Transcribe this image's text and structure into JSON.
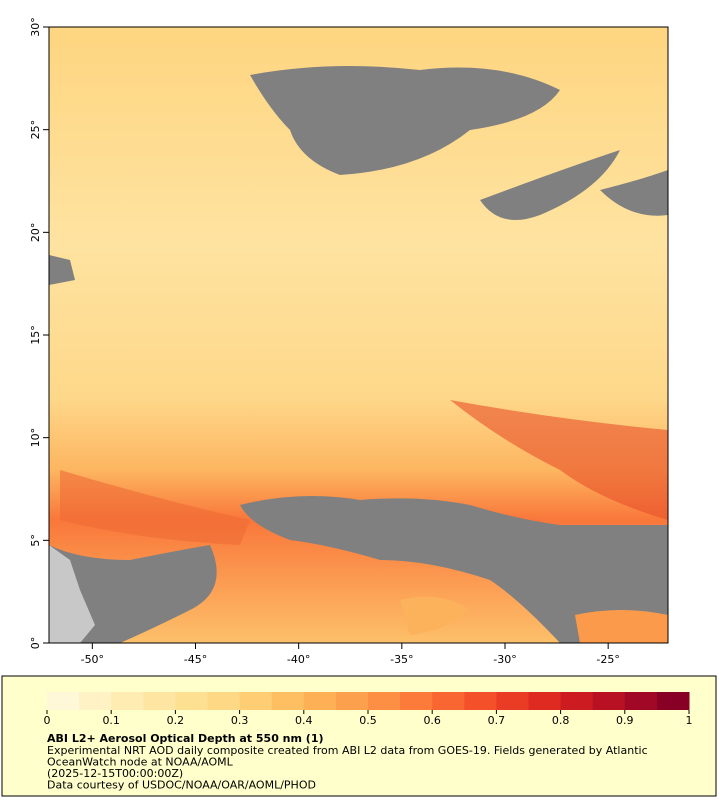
{
  "map": {
    "xlim": [
      -52.1,
      -22.1
    ],
    "ylim": [
      0,
      30
    ],
    "xticks": [
      {
        "value": -50,
        "label": "-50°"
      },
      {
        "value": -45,
        "label": "-45°"
      },
      {
        "value": -40,
        "label": "-40°"
      },
      {
        "value": -35,
        "label": "-35°"
      },
      {
        "value": -30,
        "label": "-30°"
      },
      {
        "value": -25,
        "label": "-25°"
      }
    ],
    "yticks": [
      {
        "value": 0,
        "label": "0°"
      },
      {
        "value": 5,
        "label": "5°"
      },
      {
        "value": 10,
        "label": "10°"
      },
      {
        "value": 15,
        "label": "15°"
      },
      {
        "value": 20,
        "label": "20°"
      },
      {
        "value": 25,
        "label": "25°"
      },
      {
        "value": 30,
        "label": "30°"
      }
    ]
  },
  "colorbar": {
    "lim": [
      0,
      1
    ],
    "ticks": [
      0,
      0.1,
      0.2,
      0.3,
      0.4,
      0.5,
      0.6,
      0.7,
      0.8,
      0.9,
      1
    ],
    "colors": [
      "#fff8d8",
      "#fff2c4",
      "#ffecb2",
      "#fee6a2",
      "#fee093",
      "#fed884",
      "#fecd74",
      "#febf63",
      "#feb057",
      "#fda04d",
      "#fd8f44",
      "#fc7b3b",
      "#fa6632",
      "#f4512b",
      "#ea3c25",
      "#de2a20",
      "#cc1c22",
      "#b81124",
      "#a10826",
      "#880025"
    ],
    "title": "ABI L2+ Aerosol Optical Depth at 550 nm (1)",
    "lines": [
      "Experimental NRT AOD daily composite created from ABI L2 data from GOES-19. Fields generated by Atlantic",
      "OceanWatch node at NOAA/AOML",
      "(2025-12-15T00:00:00Z)",
      "Data courtesy of USDOC/NOAA/OAR/AOML/PHOD"
    ]
  }
}
